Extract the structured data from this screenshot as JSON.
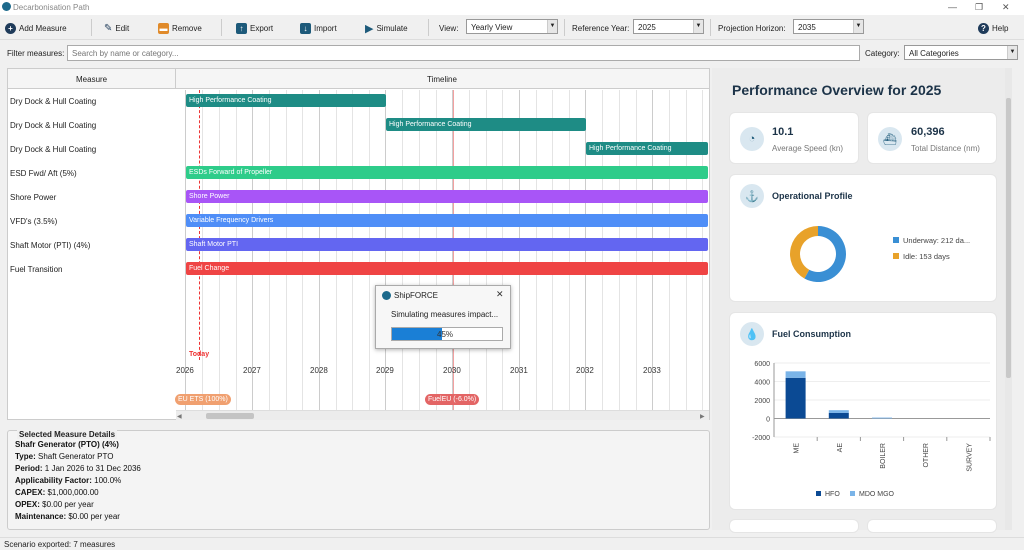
{
  "window": {
    "title": "Decarbonisation Path"
  },
  "toolbar": {
    "add_measure": "Add Measure",
    "edit": "Edit",
    "remove": "Remove",
    "export": "Export",
    "import": "Import",
    "simulate": "Simulate",
    "view_label": "View:",
    "view_value": "Yearly View",
    "ref_year_label": "Reference Year:",
    "ref_year_value": "2025",
    "horizon_label": "Projection Horizon:",
    "horizon_value": "2035",
    "help": "Help"
  },
  "filter": {
    "label": "Filter measures:",
    "placeholder": "Search by name or category...",
    "category_label": "Category:",
    "category_value": "All Categories"
  },
  "timeline": {
    "col_measure": "Measure",
    "col_timeline": "Timeline",
    "rows": [
      {
        "label": "Dry Dock & Hull Coating",
        "bar": "High Performance Coating"
      },
      {
        "label": "Dry Dock & Hull Coating",
        "bar": "High Performance Coating"
      },
      {
        "label": "Dry Dock & Hull Coating",
        "bar": "High Performance Coating"
      },
      {
        "label": "ESD Fwd/ Aft (5%)",
        "bar": "ESDs Forward of Propeller"
      },
      {
        "label": "Shore Power",
        "bar": "Shore Power"
      },
      {
        "label": "VFD's (3.5%)",
        "bar": "Variable Frequency Drivers"
      },
      {
        "label": "Shaft Motor (PTI) (4%)",
        "bar": "Shaft Motor PTI"
      },
      {
        "label": "Fuel Transition",
        "bar": "Fuel Change"
      }
    ],
    "today": "Today",
    "years": [
      "2026",
      "2027",
      "2028",
      "2029",
      "2030",
      "2031",
      "2032",
      "2033"
    ],
    "markers": [
      "EU ETS (100%)",
      "FuelEU (-6.0%)"
    ],
    "bar_colors": {
      "coating": "#1e8c85",
      "esd": "#2ecc8a",
      "shore": "#a855f7",
      "vfd": "#4f8ef7",
      "shaft": "#6366f1",
      "fuel": "#ef4444"
    }
  },
  "details": {
    "heading": "Selected Measure Details",
    "name": "Shafr Generator (PTO) (4%)",
    "type_label": "Type:",
    "type_value": "Shaft Generator PTO",
    "period_label": "Period:",
    "period_value": "1 Jan 2026 to 31 Dec 2036",
    "app_label": "Applicability Factor:",
    "app_value": "100.0%",
    "capex_label": "CAPEX:",
    "capex_value": "$1,000,000.00",
    "opex_label": "OPEX:",
    "opex_value": "$0.00 per year",
    "maint_label": "Maintenance:",
    "maint_value": "$0.00 per year"
  },
  "status": {
    "text": "Scenario exported: 7 measures"
  },
  "overview": {
    "title": "Performance Overview for 2025",
    "speed_value": "10.1",
    "speed_label": "Average Speed (kn)",
    "distance_value": "60,396",
    "distance_label": "Total Distance (nm)",
    "op_title": "Operational Profile",
    "underway": "Underway: 212 da...",
    "idle": "Idle: 153 days",
    "fuel_title": "Fuel Consumption"
  },
  "modal": {
    "title": "ShipFORCE",
    "message": "Simulating measures impact...",
    "progress_text": "45%",
    "progress": 0.45
  },
  "chart_data": [
    {
      "type": "pie",
      "labels": [
        "Underway",
        "Idle"
      ],
      "values": [
        212,
        153
      ],
      "colors": [
        "#3a8fd4",
        "#e8a22a"
      ]
    },
    {
      "type": "bar",
      "categories": [
        "ME",
        "AE",
        "BOILER",
        "OTHER",
        "SURVEY"
      ],
      "series": [
        {
          "name": "HFO",
          "values": [
            4400,
            600,
            0,
            0,
            0
          ],
          "color": "#0b4a94"
        },
        {
          "name": "MDO MGO",
          "values": [
            700,
            300,
            100,
            0,
            0
          ],
          "color": "#7ab4e8"
        }
      ],
      "ylim": [
        -2000,
        6000
      ],
      "yticks": [
        "6000",
        "4000",
        "2000",
        "0",
        "-2000"
      ]
    }
  ]
}
